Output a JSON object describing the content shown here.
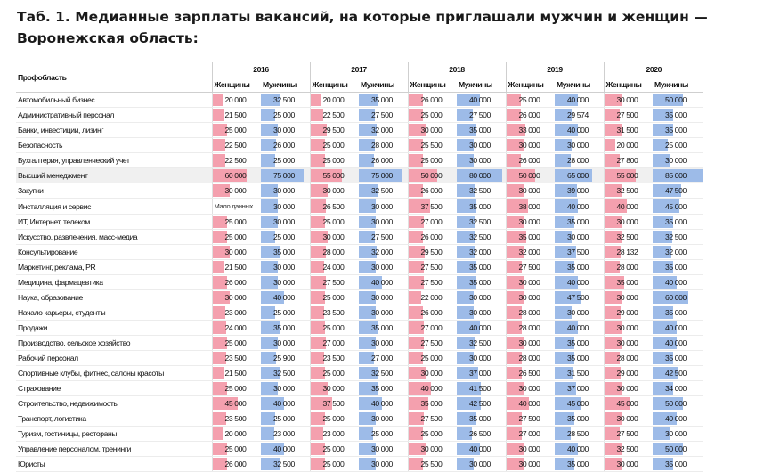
{
  "title": "Таб. 1. Медианные зарплаты вакансий, на которые приглашали мужчин и женщин — Воронежская область:",
  "table": {
    "corner": "Профобласть",
    "years": [
      "2016",
      "2017",
      "2018",
      "2019",
      "2020"
    ],
    "genders": [
      "Женщины",
      "Мужчины"
    ],
    "scale_max": 85000,
    "rows": [
      {
        "label": "Автомобильный бизнес",
        "values": [
          "20 000",
          "32 500",
          "20 000",
          "35 000",
          "26 000",
          "40 000",
          "25 000",
          "40 000",
          "30 000",
          "50 000"
        ]
      },
      {
        "label": "Административный персонал",
        "values": [
          "21 500",
          "25 000",
          "22 500",
          "27 500",
          "25 000",
          "27 500",
          "26 000",
          "29 574",
          "27 500",
          "35 000"
        ]
      },
      {
        "label": "Банки, инвестиции, лизинг",
        "values": [
          "25 000",
          "30 000",
          "29 500",
          "32 000",
          "30 000",
          "35 000",
          "33 000",
          "40 000",
          "31 500",
          "35 000"
        ]
      },
      {
        "label": "Безопасность",
        "values": [
          "22 500",
          "26 000",
          "25 000",
          "28 000",
          "25 500",
          "30 000",
          "30 000",
          "30 000",
          "20 000",
          "25 000"
        ]
      },
      {
        "label": "Бухгалтерия, управленческий учет",
        "values": [
          "22 500",
          "25 000",
          "25 000",
          "26 000",
          "25 000",
          "30 000",
          "26 000",
          "28 000",
          "27 800",
          "30 000"
        ]
      },
      {
        "label": "Высший менеджмент",
        "highlight": true,
        "values": [
          "60 000",
          "75 000",
          "55 000",
          "75 000",
          "50 000",
          "80 000",
          "50 000",
          "65 000",
          "55 000",
          "85 000"
        ]
      },
      {
        "label": "Закупки",
        "values": [
          "30 000",
          "30 000",
          "30 000",
          "32 500",
          "26 000",
          "32 500",
          "30 000",
          "39 000",
          "32 500",
          "47 500"
        ]
      },
      {
        "label": "Инсталляция и сервис",
        "values": [
          "Мало данных",
          "30 000",
          "26 500",
          "30 000",
          "37 500",
          "35 000",
          "38 000",
          "40 000",
          "40 000",
          "45 000"
        ]
      },
      {
        "label": "ИТ, Интернет, телеком",
        "values": [
          "25 000",
          "30 000",
          "25 000",
          "30 000",
          "27 000",
          "32 500",
          "30 000",
          "35 000",
          "30 000",
          "35 000"
        ]
      },
      {
        "label": "Искусство, развлечения, масс-медиа",
        "values": [
          "25 000",
          "25 000",
          "30 000",
          "27 500",
          "26 000",
          "32 500",
          "35 000",
          "30 000",
          "32 500",
          "32 500"
        ]
      },
      {
        "label": "Консультирование",
        "values": [
          "30 000",
          "35 000",
          "28 000",
          "32 000",
          "29 500",
          "32 000",
          "32 000",
          "37 500",
          "28 132",
          "32 000"
        ]
      },
      {
        "label": "Маркетинг, реклама, PR",
        "values": [
          "21 500",
          "30 000",
          "24 000",
          "30 000",
          "27 500",
          "35 000",
          "27 500",
          "35 000",
          "28 000",
          "35 000"
        ]
      },
      {
        "label": "Медицина, фармацевтика",
        "values": [
          "26 000",
          "30 000",
          "27 500",
          "40 000",
          "27 500",
          "35 000",
          "30 000",
          "40 000",
          "35 000",
          "40 000"
        ]
      },
      {
        "label": "Наука, образование",
        "values": [
          "30 000",
          "40 000",
          "25 000",
          "30 000",
          "22 000",
          "30 000",
          "30 000",
          "47 500",
          "30 000",
          "60 000"
        ]
      },
      {
        "label": "Начало карьеры, студенты",
        "values": [
          "23 000",
          "25 000",
          "23 500",
          "30 000",
          "26 000",
          "30 000",
          "28 000",
          "30 000",
          "29 000",
          "35 000"
        ]
      },
      {
        "label": "Продажи",
        "values": [
          "24 000",
          "35 000",
          "25 000",
          "35 000",
          "27 000",
          "40 000",
          "28 000",
          "40 000",
          "30 000",
          "40 000"
        ]
      },
      {
        "label": "Производство, сельское хозяйство",
        "values": [
          "25 000",
          "30 000",
          "27 000",
          "30 000",
          "27 500",
          "32 500",
          "30 000",
          "35 000",
          "30 000",
          "40 000"
        ]
      },
      {
        "label": "Рабочий персонал",
        "values": [
          "23 500",
          "25 900",
          "23 500",
          "27 000",
          "25 000",
          "30 000",
          "28 000",
          "35 000",
          "28 000",
          "35 000"
        ]
      },
      {
        "label": "Спортивные клубы, фитнес, салоны красоты",
        "values": [
          "21 500",
          "32 500",
          "25 000",
          "32 500",
          "30 000",
          "37 000",
          "26 500",
          "31 500",
          "29 000",
          "42 500"
        ]
      },
      {
        "label": "Страхование",
        "values": [
          "25 000",
          "30 000",
          "30 000",
          "35 000",
          "40 000",
          "41 500",
          "30 000",
          "37 000",
          "30 000",
          "34 000"
        ]
      },
      {
        "label": "Строительство, недвижимость",
        "values": [
          "45 000",
          "40 000",
          "37 500",
          "40 000",
          "35 000",
          "42 500",
          "40 000",
          "45 000",
          "45 000",
          "50 000"
        ]
      },
      {
        "label": "Транспорт, логистика",
        "values": [
          "23 500",
          "25 000",
          "25 000",
          "30 000",
          "27 500",
          "35 000",
          "27 500",
          "35 000",
          "30 000",
          "40 000"
        ]
      },
      {
        "label": "Туризм, гостиницы, рестораны",
        "values": [
          "20 000",
          "23 000",
          "23 000",
          "25 000",
          "25 000",
          "26 500",
          "27 000",
          "28 500",
          "27 500",
          "30 000"
        ]
      },
      {
        "label": "Управление персоналом, тренинги",
        "values": [
          "25 000",
          "40 000",
          "25 000",
          "30 000",
          "30 000",
          "40 000",
          "30 000",
          "40 000",
          "32 500",
          "50 000"
        ]
      },
      {
        "label": "Юристы",
        "values": [
          "26 000",
          "32 500",
          "25 000",
          "30 000",
          "25 500",
          "30 000",
          "30 000",
          "35 000",
          "30 000",
          "35 000"
        ]
      }
    ]
  },
  "colors": {
    "women_bar": "#f4a0ae",
    "men_bar": "#9dbbe8"
  }
}
